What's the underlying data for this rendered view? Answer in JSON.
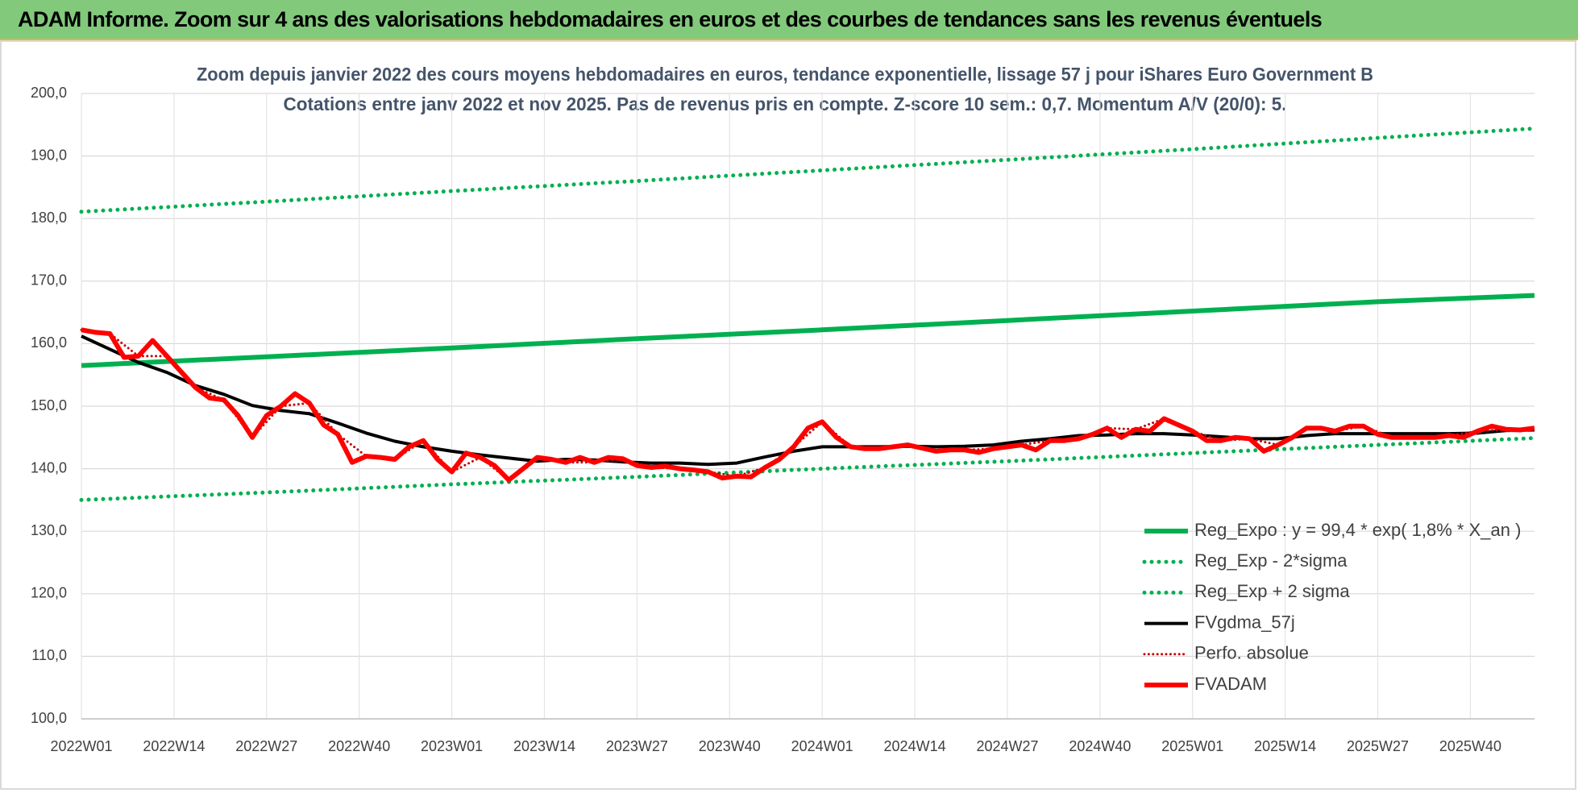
{
  "banner": "ADAM Informe. Zoom sur 4 ans des valorisations hebdomadaires en euros et des courbes de tendances sans les revenus éventuels",
  "chart_data": {
    "type": "line",
    "title": "Zoom depuis janvier 2022 des cours moyens hebdomadaires en euros, tendance exponentielle, lissage 57 j pour iShares Euro Government B",
    "subtitle": "Cotations entre janv 2022 et nov 2025. Pas de revenus pris en compte. Z-score 10 sem.: 0,7. Momentum A/V (20/0): 5.",
    "xlim": [
      0,
      204
    ],
    "xticks": [
      {
        "value": 0,
        "label": "2022W01"
      },
      {
        "value": 13,
        "label": "2022W14"
      },
      {
        "value": 26,
        "label": "2022W27"
      },
      {
        "value": 39,
        "label": "2022W40"
      },
      {
        "value": 52,
        "label": "2023W01"
      },
      {
        "value": 65,
        "label": "2023W14"
      },
      {
        "value": 78,
        "label": "2023W27"
      },
      {
        "value": 91,
        "label": "2023W40"
      },
      {
        "value": 104,
        "label": "2024W01"
      },
      {
        "value": 117,
        "label": "2024W14"
      },
      {
        "value": 130,
        "label": "2024W27"
      },
      {
        "value": 143,
        "label": "2024W40"
      },
      {
        "value": 156,
        "label": "2025W01"
      },
      {
        "value": 169,
        "label": "2025W14"
      },
      {
        "value": 182,
        "label": "2025W27"
      },
      {
        "value": 195,
        "label": "2025W40"
      }
    ],
    "ylim": [
      100,
      200
    ],
    "yticks": [
      {
        "value": 100,
        "label": "100,0"
      },
      {
        "value": 110,
        "label": "110,0"
      },
      {
        "value": 120,
        "label": "120,0"
      },
      {
        "value": 130,
        "label": "130,0"
      },
      {
        "value": 140,
        "label": "140,0"
      },
      {
        "value": 150,
        "label": "150,0"
      },
      {
        "value": 160,
        "label": "160,0"
      },
      {
        "value": 170,
        "label": "170,0"
      },
      {
        "value": 180,
        "label": "180,0"
      },
      {
        "value": 190,
        "label": "190,0"
      },
      {
        "value": 200,
        "label": "200,0"
      }
    ],
    "grid": true,
    "legend": "lower right",
    "series": [
      {
        "name": "Reg_Expo : y = 99,4 * exp( 1,8% *  X_an )",
        "color": "#00b050",
        "style": "solid",
        "width": 6,
        "x": [
          0,
          26,
          52,
          78,
          104,
          130,
          156,
          182,
          204
        ],
        "values": [
          156.5,
          157.9,
          159.3,
          160.8,
          162.2,
          163.7,
          165.2,
          166.7,
          167.7
        ]
      },
      {
        "name": "Reg_Exp - 2*sigma",
        "color": "#00b050",
        "style": "dotted",
        "width": 5,
        "x": [
          0,
          26,
          52,
          78,
          104,
          130,
          156,
          182,
          204
        ],
        "values": [
          135.0,
          136.2,
          137.5,
          138.7,
          140.0,
          141.2,
          142.5,
          143.8,
          144.9
        ]
      },
      {
        "name": "Reg_Exp + 2 sigma",
        "color": "#00b050",
        "style": "dotted",
        "width": 5,
        "x": [
          0,
          26,
          52,
          78,
          104,
          130,
          156,
          182,
          204
        ],
        "values": [
          181.1,
          182.7,
          184.4,
          186.0,
          187.7,
          189.4,
          191.1,
          192.9,
          194.4
        ]
      },
      {
        "name": "FVgdma_57j",
        "color": "#000000",
        "style": "solid",
        "width": 4,
        "x": [
          0,
          4,
          8,
          12,
          16,
          20,
          24,
          28,
          32,
          36,
          40,
          44,
          48,
          52,
          56,
          60,
          64,
          68,
          72,
          76,
          80,
          84,
          88,
          92,
          96,
          100,
          104,
          108,
          112,
          116,
          120,
          124,
          128,
          132,
          136,
          140,
          144,
          148,
          152,
          156,
          160,
          164,
          168,
          172,
          176,
          180,
          184,
          188,
          192,
          196,
          200,
          204
        ],
        "values": [
          161.2,
          159.1,
          157.0,
          155.4,
          153.3,
          151.9,
          150.1,
          149.3,
          148.8,
          147.3,
          145.7,
          144.4,
          143.5,
          142.8,
          142.2,
          141.7,
          141.2,
          141.5,
          141.4,
          141.1,
          140.9,
          140.9,
          140.7,
          140.9,
          141.9,
          142.8,
          143.5,
          143.5,
          143.5,
          143.6,
          143.5,
          143.6,
          143.8,
          144.4,
          144.8,
          145.3,
          145.4,
          145.6,
          145.6,
          145.4,
          145.1,
          144.8,
          144.8,
          145.3,
          145.6,
          145.6,
          145.6,
          145.6,
          145.6,
          145.7,
          146.1,
          146.2
        ]
      },
      {
        "name": "Perfo. absolue",
        "color": "#c00000",
        "style": "dotted",
        "width": 3,
        "x": [
          0,
          4,
          8,
          12,
          16,
          20,
          24,
          28,
          32,
          36,
          40,
          44,
          48,
          52,
          56,
          60,
          64,
          68,
          72,
          76,
          80,
          84,
          88,
          92,
          96,
          100,
          104,
          108,
          112,
          116,
          120,
          124,
          128,
          132,
          136,
          140,
          144,
          148,
          152,
          156,
          160,
          164,
          168,
          172,
          176,
          180,
          184,
          188,
          192,
          196,
          200,
          204
        ],
        "values": [
          162.2,
          161.6,
          158.0,
          158.0,
          153.0,
          151.0,
          145.0,
          150.0,
          150.5,
          145.5,
          142.0,
          141.5,
          144.5,
          139.5,
          141.8,
          138.2,
          141.8,
          141.0,
          141.0,
          141.6,
          140.2,
          140.0,
          139.5,
          138.8,
          140.2,
          143.5,
          147.5,
          143.5,
          143.2,
          143.8,
          142.8,
          143.0,
          143.2,
          143.8,
          144.5,
          144.8,
          146.5,
          146.3,
          148.0,
          146.0,
          144.5,
          144.8,
          143.8,
          146.5,
          146.0,
          146.8,
          145.0,
          145.0,
          145.3,
          146.0,
          146.3,
          146.5
        ]
      },
      {
        "name": "FVADAM",
        "color": "#ff0000",
        "style": "solid",
        "width": 6,
        "x": [
          0,
          2,
          4,
          6,
          8,
          10,
          12,
          14,
          16,
          18,
          20,
          22,
          24,
          26,
          28,
          30,
          32,
          34,
          36,
          38,
          40,
          42,
          44,
          46,
          48,
          50,
          52,
          54,
          56,
          58,
          60,
          62,
          64,
          66,
          68,
          70,
          72,
          74,
          76,
          78,
          80,
          82,
          84,
          86,
          88,
          90,
          92,
          94,
          96,
          98,
          100,
          102,
          104,
          106,
          108,
          110,
          112,
          114,
          116,
          118,
          120,
          122,
          124,
          126,
          128,
          130,
          132,
          134,
          136,
          138,
          140,
          142,
          144,
          146,
          148,
          150,
          152,
          154,
          156,
          158,
          160,
          162,
          164,
          166,
          168,
          170,
          172,
          174,
          176,
          178,
          180,
          182,
          184,
          186,
          188,
          190,
          192,
          194,
          196,
          198,
          200,
          202,
          204
        ],
        "values": [
          162.2,
          161.8,
          161.6,
          157.8,
          158.0,
          160.5,
          158.0,
          155.5,
          153.0,
          151.3,
          151.0,
          148.5,
          145.0,
          148.5,
          150.0,
          152.0,
          150.5,
          147.0,
          145.5,
          141.0,
          142.0,
          141.8,
          141.5,
          143.5,
          144.5,
          141.5,
          139.5,
          142.5,
          141.8,
          140.5,
          138.2,
          140.0,
          141.8,
          141.5,
          141.0,
          141.8,
          141.0,
          141.8,
          141.6,
          140.5,
          140.2,
          140.4,
          140.0,
          139.8,
          139.5,
          138.5,
          138.8,
          138.7,
          140.2,
          141.5,
          143.5,
          146.5,
          147.5,
          145.0,
          143.5,
          143.2,
          143.2,
          143.5,
          143.8,
          143.3,
          142.8,
          143.0,
          143.0,
          142.6,
          143.2,
          143.5,
          143.8,
          143.0,
          144.5,
          144.5,
          144.8,
          145.5,
          146.5,
          145.0,
          146.3,
          146.0,
          148.0,
          147.0,
          146.0,
          144.5,
          144.5,
          145.0,
          144.8,
          142.8,
          143.8,
          145.0,
          146.5,
          146.5,
          146.0,
          146.8,
          146.8,
          145.5,
          145.0,
          145.0,
          145.0,
          145.0,
          145.3,
          145.0,
          146.0,
          146.8,
          146.3,
          146.2,
          146.5
        ]
      }
    ]
  }
}
